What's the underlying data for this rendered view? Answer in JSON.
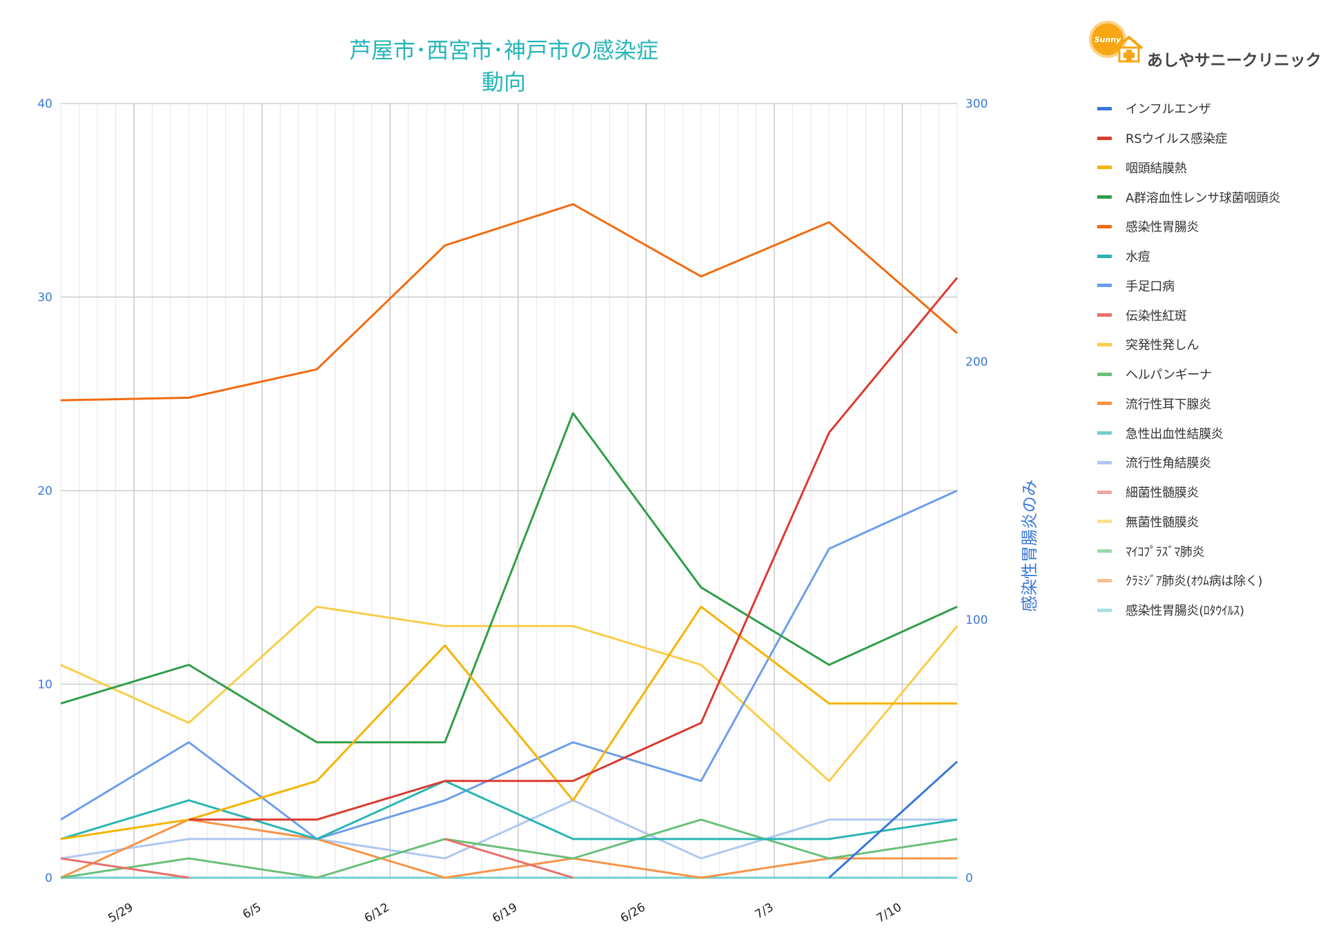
{
  "chart_data": {
    "type": "line",
    "title": "芦屋市･西宮市･神戸市の感染症動向",
    "x": [
      "5/25",
      "6/1",
      "6/8",
      "6/15",
      "6/22",
      "6/29",
      "7/6",
      "7/13"
    ],
    "x_ticks": [
      "5/29",
      "6/5",
      "6/12",
      "6/19",
      "6/26",
      "7/3",
      "7/10"
    ],
    "y_left": {
      "ylim": [
        0,
        40
      ],
      "ticks": [
        "0",
        "10",
        "20",
        "30",
        "40"
      ]
    },
    "y_right": {
      "ylim": [
        0,
        300
      ],
      "ticks": [
        "0",
        "100",
        "200",
        "300"
      ],
      "label": "感染性胃腸炎のみ"
    },
    "grid": true,
    "legend_position": "right",
    "series": [
      {
        "name": "インフルエンザ",
        "color": "#3a78d8",
        "axis": "left",
        "values": [
          null,
          null,
          null,
          null,
          null,
          null,
          0,
          6
        ]
      },
      {
        "name": "RSウイルス感染症",
        "color": "#db3a2f",
        "axis": "left",
        "values": [
          null,
          3,
          3,
          5,
          5,
          8,
          23,
          31
        ]
      },
      {
        "name": "咽頭結膜熱",
        "color": "#f5b400",
        "axis": "left",
        "values": [
          2,
          3,
          5,
          12,
          4,
          14,
          9,
          9
        ]
      },
      {
        "name": "A群溶血性レンサ球菌咽頭炎",
        "color": "#2f9e47",
        "axis": "left",
        "values": [
          9,
          11,
          7,
          7,
          24,
          15,
          11,
          14
        ]
      },
      {
        "name": "感染性胃腸炎",
        "color": "#f26b10",
        "axis": "right",
        "values": [
          185,
          186,
          197,
          245,
          261,
          233,
          254,
          211
        ]
      },
      {
        "name": "水痘",
        "color": "#29b5b5",
        "axis": "left",
        "values": [
          2,
          4,
          2,
          5,
          2,
          2,
          2,
          3
        ]
      },
      {
        "name": "手足口病",
        "color": "#6d9eeb",
        "axis": "left",
        "values": [
          3,
          7,
          2,
          4,
          7,
          5,
          17,
          20
        ]
      },
      {
        "name": "伝染性紅斑",
        "color": "#e8706a",
        "axis": "left",
        "values": [
          1,
          0,
          null,
          2,
          0,
          null,
          null,
          null
        ]
      },
      {
        "name": "突発性発しん",
        "color": "#f9cd48",
        "axis": "left",
        "values": [
          11,
          8,
          14,
          13,
          13,
          11,
          5,
          13
        ]
      },
      {
        "name": "ヘルパンギーナ",
        "color": "#6abf7a",
        "axis": "left",
        "values": [
          0,
          1,
          0,
          2,
          1,
          3,
          1,
          2
        ]
      },
      {
        "name": "流行性耳下腺炎",
        "color": "#f79346",
        "axis": "left",
        "values": [
          0,
          3,
          2,
          0,
          1,
          0,
          1,
          1
        ]
      },
      {
        "name": "急性出血性結膜炎",
        "color": "#72cfd1",
        "axis": "left",
        "values": [
          0,
          0,
          0,
          0,
          0,
          0,
          0,
          0
        ]
      },
      {
        "name": "流行性角結膜炎",
        "color": "#afc8f2",
        "axis": "left",
        "values": [
          1,
          2,
          2,
          1,
          4,
          1,
          3,
          3
        ]
      },
      {
        "name": "細菌性髄膜炎",
        "color": "#f2a5a1",
        "axis": "left",
        "values": [
          0,
          0,
          0,
          0,
          0,
          0,
          0,
          0
        ]
      },
      {
        "name": "無菌性髄膜炎",
        "color": "#fbe08e",
        "axis": "left",
        "values": [
          0,
          0,
          0,
          0,
          0,
          0,
          0,
          0
        ]
      },
      {
        "name": "ﾏｲｺﾌﾟﾗｽﾞﾏ肺炎",
        "color": "#9fd7a8",
        "axis": "left",
        "values": [
          0,
          0,
          0,
          0,
          0,
          0,
          0,
          0
        ]
      },
      {
        "name": "ｸﾗﾐｼﾞｱ肺炎(ｵｳﾑ病は除く)",
        "color": "#f9be90",
        "axis": "left",
        "values": [
          0,
          0,
          0,
          0,
          0,
          0,
          0,
          0
        ]
      },
      {
        "name": "感染性胃腸炎(ﾛﾀｳｲﾙｽ)",
        "color": "#a9dfe4",
        "axis": "left",
        "values": [
          0,
          0,
          0,
          0,
          0,
          0,
          0,
          0
        ]
      }
    ]
  },
  "logo": {
    "text": "あしやサニークリニック",
    "badge": "Sunny"
  }
}
